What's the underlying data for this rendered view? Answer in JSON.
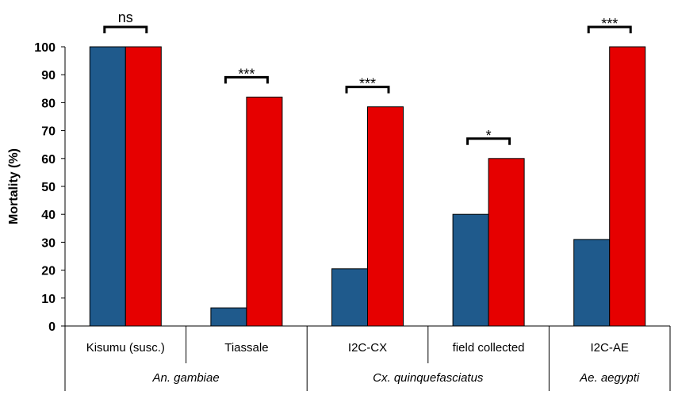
{
  "chart_data": {
    "type": "bar",
    "ylabel": "Mortality (%)",
    "ylim": [
      0,
      100
    ],
    "yticks": [
      0,
      10,
      20,
      30,
      40,
      50,
      60,
      70,
      80,
      90,
      100
    ],
    "categories": [
      "Kisumu (susc.)",
      "Tiassale",
      "I2C-CX",
      "field collected",
      "I2C-AE"
    ],
    "groups": [
      {
        "label": "An. gambiae",
        "categories": [
          0,
          1
        ]
      },
      {
        "label": "Cx. quinquefasciatus",
        "categories": [
          2,
          3
        ]
      },
      {
        "label": "Ae. aegypti",
        "categories": [
          4
        ]
      }
    ],
    "series": [
      {
        "color": "#1f5a8c",
        "values": [
          100,
          6.5,
          20.5,
          40,
          31
        ]
      },
      {
        "color": "#e60000",
        "values": [
          100,
          82,
          78.5,
          60,
          100
        ]
      }
    ],
    "significance": [
      "ns",
      "***",
      "***",
      "*",
      "***"
    ],
    "grid": false,
    "legend": "none"
  }
}
